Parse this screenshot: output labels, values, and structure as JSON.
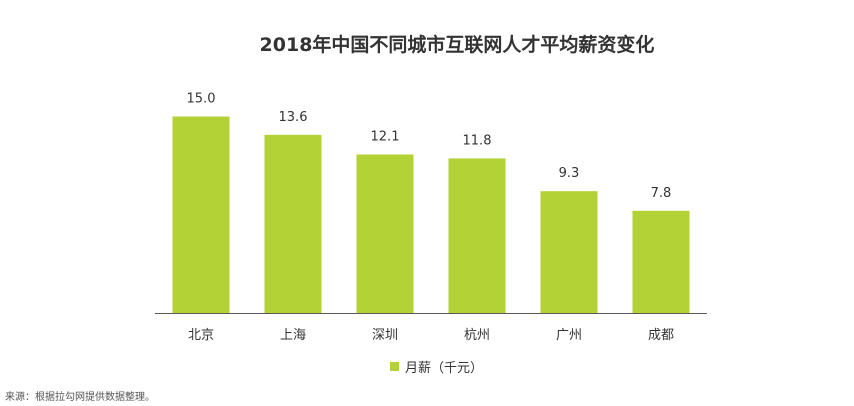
{
  "chart_data": {
    "type": "bar",
    "title": "2018年中国不同城市互联网人才平均薪资变化",
    "categories": [
      "北京",
      "上海",
      "深圳",
      "杭州",
      "广州",
      "成都"
    ],
    "series": [
      {
        "name": "月薪（千元）",
        "values": [
          15.0,
          13.6,
          12.1,
          11.8,
          9.3,
          7.8
        ],
        "color": "#b2d235"
      }
    ],
    "data_labels": [
      "15.0",
      "13.6",
      "12.1",
      "11.8",
      "9.3",
      "7.8"
    ],
    "ylim": [
      0,
      17.5
    ],
    "grid": false,
    "legend": "bottom",
    "axis_color": "#595959"
  },
  "legend_label": "月薪（千元）",
  "source_note": "来源：根据拉勾网提供数据整理。"
}
